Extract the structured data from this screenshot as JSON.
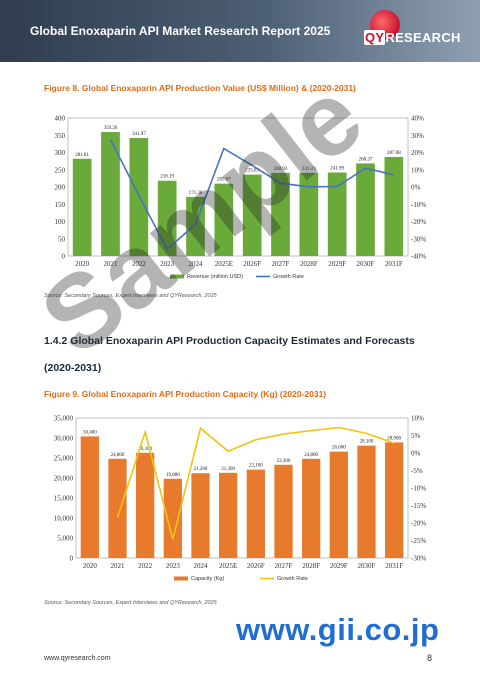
{
  "header": {
    "title": "Global Enoxaparin API Market Research Report 2025"
  },
  "logo": {
    "prefix": "QY",
    "suffix": "RESEARCH"
  },
  "figure8": {
    "title": "Figure 8.   Global Enoxaparin API Production Value (US$ Million) & (2020-2031)"
  },
  "figure9": {
    "title": "Figure 9.   Global Enoxaparin API Production Capacity (Kg) (2020-2031)"
  },
  "section": {
    "heading": "1.4.2  Global Enoxaparin API Production Capacity Estimates and Forecasts",
    "years": "(2020-2031)"
  },
  "source1": "Source: Secondary Sources, Expert Interviews and QYResearch, 2025",
  "source2": "Source: Secondary Sources, Expert Interviews and QYResearch, 2025",
  "footer": {
    "url": "www.qyresearch.com",
    "page": "8"
  },
  "watermark": {
    "text": "Sample",
    "site": "www.gii.co.jp"
  },
  "colors": {
    "bar1": "#6aaa3a",
    "line1": "#4472c4",
    "bar2": "#e87a2e",
    "line2": "#f2c40f"
  },
  "chart_data": [
    {
      "type": "bar",
      "categories": [
        "2020",
        "2021",
        "2022",
        "2023",
        "2024",
        "2025E",
        "2026F",
        "2027F",
        "2028F",
        "2029F",
        "2030F",
        "2031F"
      ],
      "series": [
        {
          "name": "Revenue (million USD)",
          "values": [
            281.81,
            359.26,
            341.97,
            218.19,
            171.38,
            209.67,
            235.83,
            240.93,
            241.23,
            241.99,
            268.37,
            287.08
          ],
          "labels": [
            "281.81",
            "359.26",
            "341.97",
            "218.19",
            "171.38",
            "209.67",
            "235.83",
            "240.93",
            "241.23",
            "241.99",
            "268.37",
            "287.08"
          ],
          "axis": "left"
        },
        {
          "name": "Growth Rate",
          "type": "line",
          "values": [
            null,
            27.5,
            -4.8,
            -36.2,
            -21.5,
            22.3,
            12.5,
            2.2,
            0.1,
            0.3,
            10.9,
            7.0
          ],
          "axis": "right"
        }
      ],
      "ylim": [
        0,
        400
      ],
      "yticks": [
        "0",
        "50",
        "100",
        "150",
        "200",
        "250",
        "300",
        "350",
        "400"
      ],
      "y2lim": [
        -40,
        40
      ],
      "y2ticks": [
        "-40%",
        "-30%",
        "-20%",
        "-10%",
        "0%",
        "10%",
        "20%",
        "30%",
        "40%"
      ],
      "legend": "bottom"
    },
    {
      "type": "bar",
      "categories": [
        "2020",
        "2021",
        "2022",
        "2023",
        "2024",
        "2025E",
        "2026F",
        "2027F",
        "2028F",
        "2029F",
        "2030F",
        "2031F"
      ],
      "series": [
        {
          "name": "Capacity (Kg)",
          "values": [
            30400,
            24800,
            26300,
            19800,
            21200,
            21300,
            22100,
            23300,
            24800,
            26600,
            28100,
            28900
          ],
          "labels": [
            "30,400",
            "24,800",
            "26,300",
            "19,800",
            "21,200",
            "21,300",
            "22,100",
            "23,300",
            "24,800",
            "26,600",
            "28,100",
            "28,900"
          ],
          "axis": "left"
        },
        {
          "name": "Growth Rate",
          "type": "line",
          "values": [
            null,
            -18.4,
            6.0,
            -24.7,
            7.1,
            0.5,
            3.8,
            5.4,
            6.4,
            7.3,
            5.6,
            2.8
          ],
          "axis": "right"
        }
      ],
      "ylim": [
        0,
        35000
      ],
      "yticks": [
        "0",
        "5,000",
        "10,000",
        "15,000",
        "20,000",
        "25,000",
        "30,000",
        "35,000"
      ],
      "y2lim": [
        -30,
        10
      ],
      "y2ticks": [
        "-30%",
        "-25%",
        "-20%",
        "-15%",
        "-10%",
        "-5%",
        "0%",
        "5%",
        "10%"
      ],
      "legend": "bottom"
    }
  ]
}
